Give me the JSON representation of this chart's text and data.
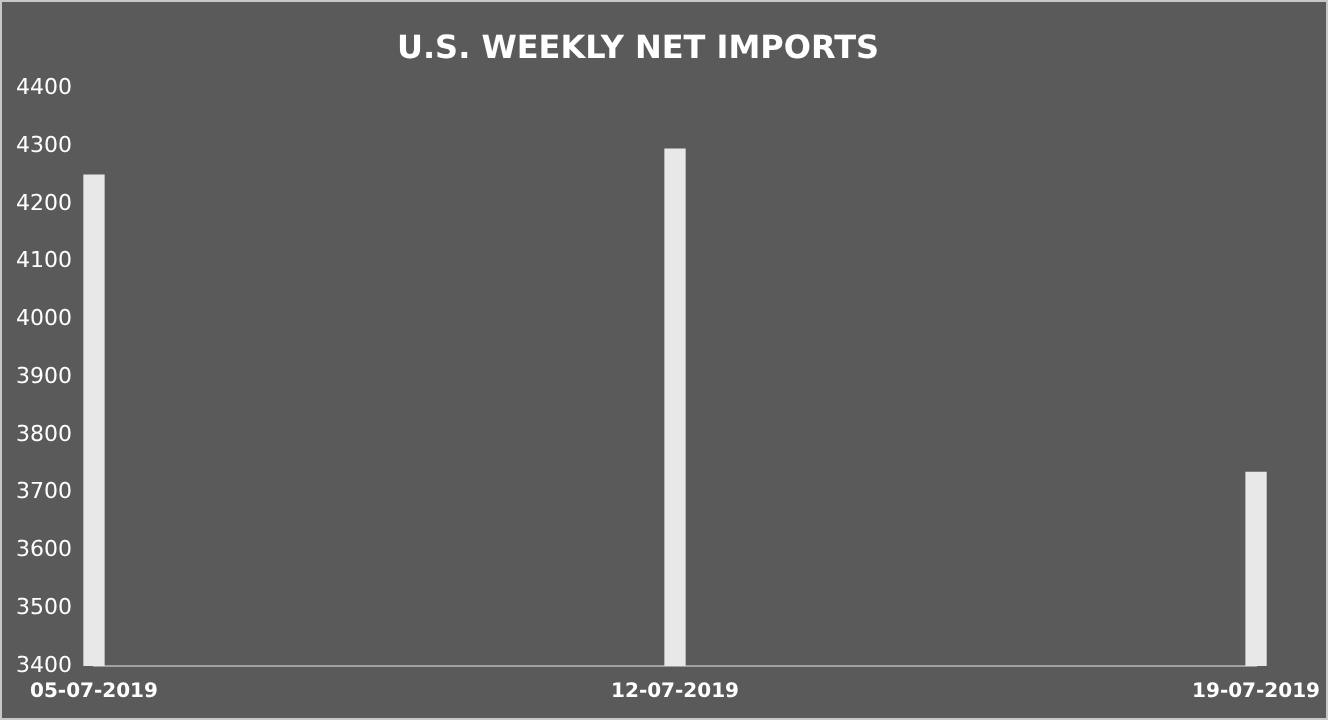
{
  "chart_data": {
    "type": "bar",
    "title": "U.S. WEEKLY NET IMPORTS",
    "categories": [
      "05-07-2019",
      "12-07-2019",
      "19-07-2019"
    ],
    "values": [
      4250,
      4295,
      3735
    ],
    "color": "#e8e8e8",
    "ylim": [
      3400,
      4400
    ],
    "yticks": [
      3400,
      3500,
      3600,
      3700,
      3800,
      3900,
      4000,
      4100,
      4200,
      4300,
      4400
    ],
    "grid": false,
    "legend": false
  }
}
